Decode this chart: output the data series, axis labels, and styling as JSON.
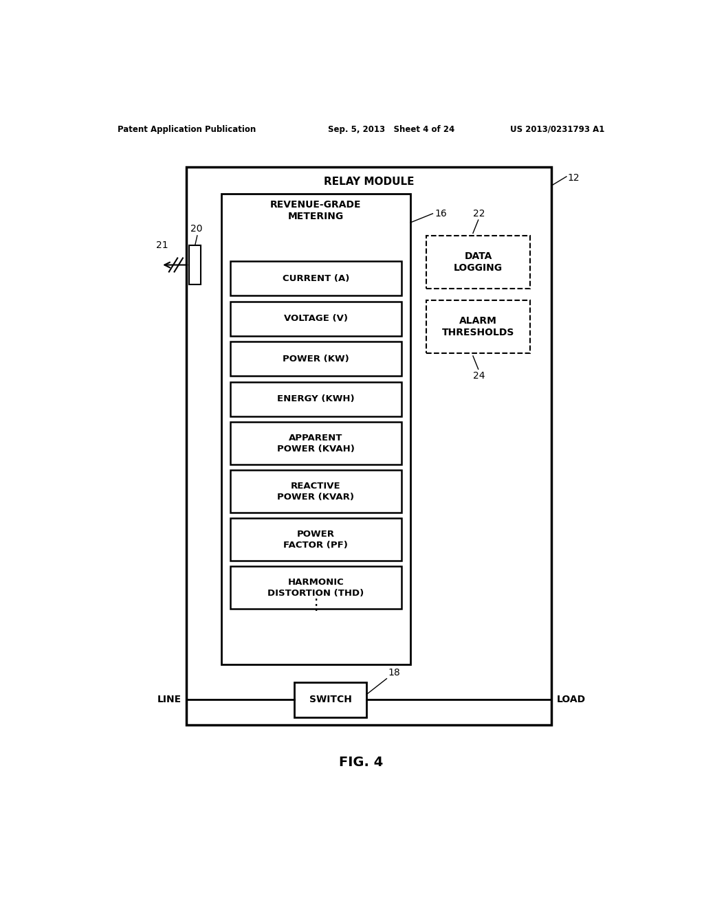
{
  "bg_color": "#ffffff",
  "header_left": "Patent Application Publication",
  "header_mid": "Sep. 5, 2013   Sheet 4 of 24",
  "header_right": "US 2013/0231793 A1",
  "fig_label": "FIG. 4",
  "relay_module_title": "RELAY MODULE",
  "relay_module_ref": "12",
  "metering_title": "REVENUE-GRADE\nMETERING",
  "metering_ref": "16",
  "ct_ref": "20",
  "line_ref": "21",
  "data_logging_ref": "22",
  "alarm_ref": "24",
  "switch_ref": "18",
  "metering_boxes": [
    "CURRENT (A)",
    "VOLTAGE (V)",
    "POWER (KW)",
    "ENERGY (KWH)",
    "APPARENT\nPOWER (KVAH)",
    "REACTIVE\nPOWER (KVAR)",
    "POWER\nFACTOR (PF)",
    "HARMONIC\nDISTORTION (THD)"
  ],
  "dashed_boxes": [
    "DATA\nLOGGING",
    "ALARM\nTHRESHOLDS"
  ],
  "line_label_left": "LINE",
  "line_label_right": "LOAD",
  "switch_label": "SWITCH"
}
